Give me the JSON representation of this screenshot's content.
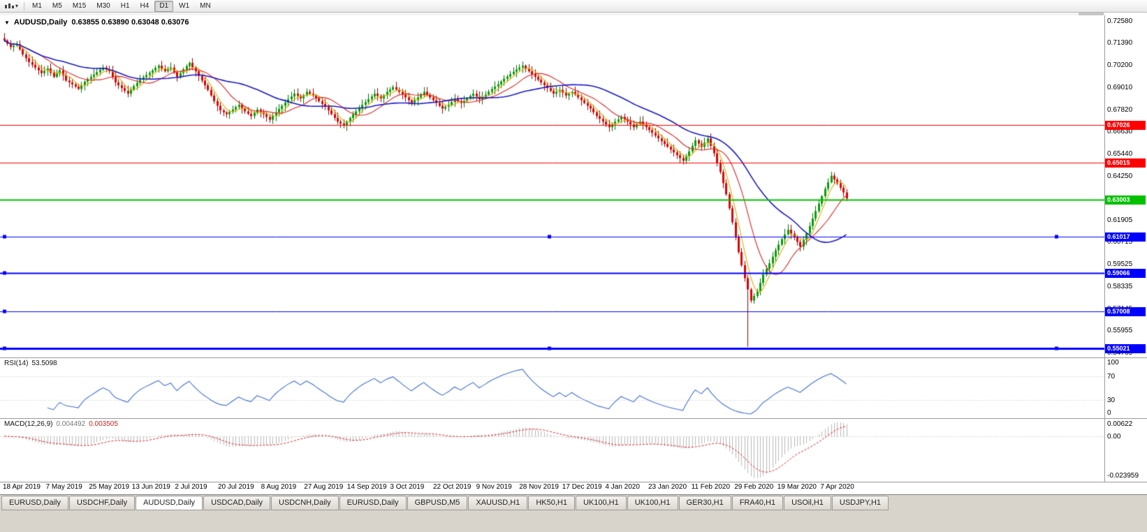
{
  "toolbar": {
    "dropdown_glyph": "▾",
    "timeframes": [
      "M1",
      "M5",
      "M15",
      "M30",
      "H1",
      "H4",
      "D1",
      "W1",
      "MN"
    ],
    "active_timeframe": "D1"
  },
  "chart": {
    "dropdown_glyph": "▼",
    "title_symbol": "AUDUSD,Daily",
    "title_ohlc": "0.63855 0.63890 0.63048 0.63076",
    "price_axis_labels": [
      "0.72580",
      "0.71390",
      "0.70200",
      "0.69010",
      "0.67820",
      "0.66630",
      "0.65440",
      "0.64250",
      "0.63060",
      "0.61905",
      "0.60715",
      "0.59525",
      "0.58335",
      "0.57145",
      "0.55955",
      "0.54765"
    ],
    "hlines": [
      {
        "price": 0.67026,
        "label": "0.67026",
        "color": "#ff0000",
        "width": 1,
        "handles": ""
      },
      {
        "price": 0.65015,
        "label": "0.65015",
        "color": "#ff0000",
        "width": 1,
        "handles": ""
      },
      {
        "price": 0.63003,
        "label": "0.63003",
        "color": "#00c000",
        "width": 2,
        "handles": ""
      },
      {
        "price": 0.61017,
        "label": "0.61017",
        "color": "#0000ff",
        "width": 1,
        "handles": "full"
      },
      {
        "price": 0.59066,
        "label": "0.59066",
        "color": "#0000ff",
        "width": 2,
        "handles": "left"
      },
      {
        "price": 0.57008,
        "label": "0.57008",
        "color": "#0000ff",
        "width": 1,
        "handles": "left"
      },
      {
        "price": 0.55021,
        "label": "0.55021",
        "color": "#0000ff",
        "width": 3,
        "handles": "full"
      }
    ]
  },
  "rsi": {
    "name": "RSI(14)",
    "value": "53.5098",
    "axis_labels": [
      "100",
      "70",
      "30",
      "0"
    ],
    "levels": [
      70,
      30
    ]
  },
  "macd": {
    "name": "MACD(12,26,9)",
    "value_main": "0.004492",
    "value_signal": "0.003505",
    "axis_top": "0.00622",
    "axis_zero": "0.00",
    "axis_bottom": "-0.023959"
  },
  "time_axis": {
    "dates": [
      "18 Apr 2019",
      "7 May 2019",
      "25 May 2019",
      "13 Jun 2019",
      "2 Jul 2019",
      "20 Jul 2019",
      "8 Aug 2019",
      "27 Aug 2019",
      "14 Sep 2019",
      "3 Oct 2019",
      "22 Oct 2019",
      "9 Nov 2019",
      "28 Nov 2019",
      "17 Dec 2019",
      "4 Jan 2020",
      "23 Jan 2020",
      "11 Feb 2020",
      "29 Feb 2020",
      "19 Mar 2020",
      "7 Apr 2020"
    ]
  },
  "tabs": {
    "items": [
      "EURUSD,Daily",
      "USDCHF,Daily",
      "AUDUSD,Daily",
      "USDCAD,Daily",
      "USDCNH,Daily",
      "EURUSD,Daily",
      "GBPUSD,M5",
      "XAUUSD,H1",
      "HK50,H1",
      "UK100,H1",
      "UK100,H1",
      "GER30,H1",
      "FRA40,H1",
      "USOil,H1",
      "USDJPY,H1"
    ],
    "active_index": 2
  },
  "chart_data": {
    "type": "candlestick",
    "title": "AUDUSD,Daily",
    "symbol": "AUDUSD",
    "timeframe": "Daily",
    "price_range": {
      "top": 0.729,
      "bottom": 0.5455
    },
    "last_candle": {
      "open": 0.63855,
      "high": 0.6389,
      "low": 0.63048,
      "close": 0.63076
    },
    "hline_values": [
      0.67026,
      0.65015,
      0.63003,
      0.61017,
      0.59066,
      0.57008,
      0.55021
    ],
    "closes": [
      0.7155,
      0.7138,
      0.712,
      0.7128,
      0.7135,
      0.7108,
      0.708,
      0.706,
      0.704,
      0.7025,
      0.701,
      0.6995,
      0.698,
      0.6992,
      0.7005,
      0.6982,
      0.696,
      0.6978,
      0.6995,
      0.6968,
      0.694,
      0.693,
      0.692,
      0.6908,
      0.6895,
      0.6915,
      0.6935,
      0.6948,
      0.696,
      0.6972,
      0.6985,
      0.6998,
      0.701,
      0.7,
      0.699,
      0.696,
      0.693,
      0.6915,
      0.69,
      0.6885,
      0.687,
      0.689,
      0.691,
      0.6928,
      0.6945,
      0.6958,
      0.697,
      0.6982,
      0.6995,
      0.7008,
      0.702,
      0.7005,
      0.699,
      0.7,
      0.701,
      0.6985,
      0.696,
      0.698,
      0.7,
      0.7018,
      0.7035,
      0.7012,
      0.699,
      0.6965,
      0.694,
      0.6915,
      0.689,
      0.686,
      0.683,
      0.6805,
      0.678,
      0.677,
      0.676,
      0.6772,
      0.6785,
      0.6798,
      0.681,
      0.6792,
      0.6775,
      0.6762,
      0.675,
      0.6768,
      0.6785,
      0.6772,
      0.676,
      0.6745,
      0.673,
      0.675,
      0.677,
      0.6788,
      0.6805,
      0.6822,
      0.684,
      0.6855,
      0.687,
      0.6858,
      0.6845,
      0.6862,
      0.688,
      0.687,
      0.686,
      0.6845,
      0.683,
      0.6815,
      0.68,
      0.678,
      0.676,
      0.674,
      0.672,
      0.671,
      0.67,
      0.672,
      0.674,
      0.6758,
      0.6775,
      0.6792,
      0.681,
      0.6825,
      0.684,
      0.6855,
      0.687,
      0.6858,
      0.6845,
      0.6862,
      0.688,
      0.6892,
      0.6905,
      0.6892,
      0.688,
      0.6865,
      0.685,
      0.6835,
      0.682,
      0.6835,
      0.685,
      0.6865,
      0.688,
      0.6865,
      0.685,
      0.6835,
      0.682,
      0.6805,
      0.679,
      0.68,
      0.681,
      0.6825,
      0.684,
      0.683,
      0.682,
      0.6832,
      0.6845,
      0.6858,
      0.687,
      0.6855,
      0.684,
      0.6852,
      0.6865,
      0.688,
      0.6895,
      0.6908,
      0.692,
      0.6935,
      0.695,
      0.6962,
      0.6975,
      0.6988,
      0.7,
      0.701,
      0.702,
      0.7005,
      0.699,
      0.6975,
      0.696,
      0.6945,
      0.693,
      0.6915,
      0.69,
      0.6885,
      0.687,
      0.688,
      0.689,
      0.6875,
      0.686,
      0.687,
      0.688,
      0.6865,
      0.685,
      0.6835,
      0.682,
      0.6805,
      0.679,
      0.677,
      0.675,
      0.6735,
      0.672,
      0.6705,
      0.669,
      0.6705,
      0.672,
      0.6732,
      0.6745,
      0.6732,
      0.672,
      0.6705,
      0.669,
      0.6705,
      0.672,
      0.6705,
      0.669,
      0.6675,
      0.666,
      0.6645,
      0.663,
      0.6615,
      0.66,
      0.6585,
      0.657,
      0.6555,
      0.654,
      0.6525,
      0.651,
      0.6535,
      0.656,
      0.659,
      0.662,
      0.6602,
      0.6585,
      0.6608,
      0.663,
      0.659,
      0.655,
      0.65,
      0.645,
      0.639,
      0.633,
      0.6255,
      0.618,
      0.61,
      0.602,
      0.595,
      0.588,
      0.582,
      0.576,
      0.5785,
      0.581,
      0.5855,
      0.59,
      0.593,
      0.596,
      0.5995,
      0.603,
      0.606,
      0.609,
      0.6115,
      0.614,
      0.612,
      0.61,
      0.6075,
      0.605,
      0.6085,
      0.612,
      0.616,
      0.62,
      0.624,
      0.628,
      0.632,
      0.636,
      0.6395,
      0.643,
      0.641,
      0.639,
      0.6365,
      0.634,
      0.6308
    ],
    "low_overrides": {
      "241": 0.5512
    },
    "overlays": [
      {
        "name": "SMA-5",
        "color": "#d8b000",
        "period": 5
      },
      {
        "name": "SMA-13",
        "color": "#e02020",
        "period": 13
      },
      {
        "name": "SMA-34",
        "color": "#1818cc",
        "period": 34
      }
    ],
    "rsi": {
      "period": 14,
      "last": 53.5098
    },
    "macd": {
      "fast": 12,
      "slow": 26,
      "signal": 9,
      "last_main": 0.004492,
      "last_signal": 0.003505
    }
  }
}
